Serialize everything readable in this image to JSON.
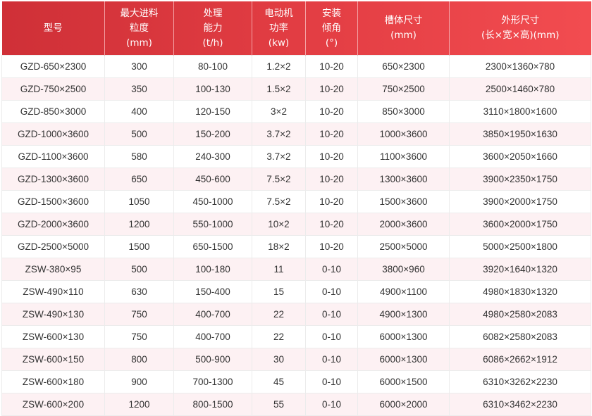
{
  "header_color_start": "#cf3037",
  "header_color_end": "#f24c50",
  "alt_row_color": "#fdf1f3",
  "columns": [
    [
      "型号"
    ],
    [
      "最大进料",
      "粒度",
      "(mm)"
    ],
    [
      "处理",
      "能力",
      "(t/h)"
    ],
    [
      "电动机",
      "功率",
      "(kw)"
    ],
    [
      "安装",
      "倾角",
      "(°)"
    ],
    [
      "槽体尺寸",
      "(mm)"
    ],
    [
      "外形尺寸",
      "(长×宽×高)(mm)"
    ]
  ],
  "rows": [
    [
      "GZD-650×2300",
      "300",
      "80-100",
      "1.2×2",
      "10-20",
      "650×2300",
      "2300×1360×780"
    ],
    [
      "GZD-750×2500",
      "350",
      "100-130",
      "1.5×2",
      "10-20",
      "750×2500",
      "2500×1460×780"
    ],
    [
      "GZD-850×3000",
      "400",
      "120-150",
      "3×2",
      "10-20",
      "850×3000",
      "3110×1800×1600"
    ],
    [
      "GZD-1000×3600",
      "500",
      "150-200",
      "3.7×2",
      "10-20",
      "1000×3600",
      "3850×1950×1630"
    ],
    [
      "GZD-1100×3600",
      "580",
      "240-300",
      "3.7×2",
      "10-20",
      "1100×3600",
      "3600×2050×1660"
    ],
    [
      "GZD-1300×3600",
      "650",
      "450-600",
      "7.5×2",
      "10-20",
      "1300×3600",
      "3900×2350×1750"
    ],
    [
      "GZD-1500×3600",
      "1050",
      "450-1000",
      "7.5×2",
      "10-20",
      "1500×3600",
      "3900×2000×1750"
    ],
    [
      "GZD-2000×3600",
      "1200",
      "550-1000",
      "10×2",
      "10-20",
      "2000×3600",
      "3600×2000×1750"
    ],
    [
      "GZD-2500×5000",
      "1500",
      "650-1500",
      "18×2",
      "10-20",
      "2500×5000",
      "5000×2500×1800"
    ],
    [
      "ZSW-380×95",
      "500",
      "100-180",
      "11",
      "0-10",
      "3800×960",
      "3920×1640×1320"
    ],
    [
      "ZSW-490×110",
      "630",
      "150-400",
      "15",
      "0-10",
      "4900×1100",
      "4980×1830×1320"
    ],
    [
      "ZSW-490×130",
      "750",
      "400-700",
      "22",
      "0-10",
      "4900×1300",
      "4980×2580×2083"
    ],
    [
      "ZSW-600×130",
      "750",
      "400-700",
      "22",
      "0-10",
      "6000×1300",
      "6082×2580×2083"
    ],
    [
      "ZSW-600×150",
      "800",
      "500-900",
      "30",
      "0-10",
      "6000×1300",
      "6086×2662×1912"
    ],
    [
      "ZSW-600×180",
      "900",
      "700-1300",
      "45",
      "0-10",
      "6000×1500",
      "6310×3262×2230"
    ],
    [
      "ZSW-600×200",
      "1200",
      "800-1500",
      "55",
      "0-10",
      "6000×2000",
      "6310×3462×2230"
    ]
  ]
}
